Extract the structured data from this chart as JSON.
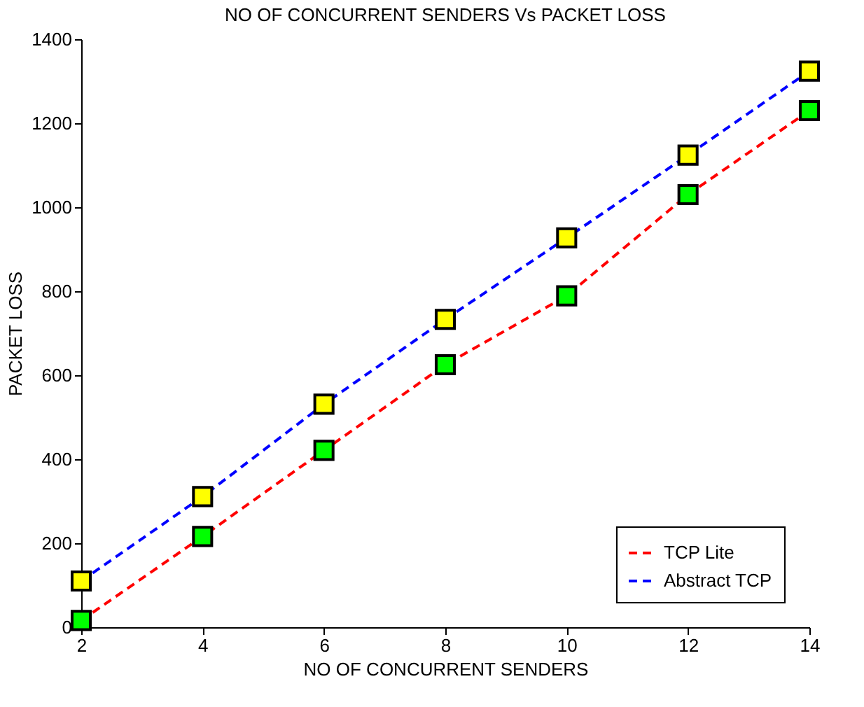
{
  "chart_data": {
    "type": "line",
    "title": "NO OF CONCURRENT SENDERS Vs PACKET LOSS",
    "xlabel": "NO OF CONCURRENT SENDERS",
    "ylabel": "PACKET LOSS",
    "x": [
      2,
      4,
      6,
      8,
      10,
      12,
      14
    ],
    "series": [
      {
        "name": "TCP Lite",
        "color": "#ff0000",
        "values": [
          16,
          216,
          421,
          625,
          789,
          1030,
          1230
        ]
      },
      {
        "name": "Abstract TCP",
        "color": "#0000ff",
        "values": [
          110,
          311,
          531,
          733,
          927,
          1124,
          1324
        ]
      }
    ],
    "xlim": [
      2,
      14
    ],
    "xticks": [
      2,
      4,
      6,
      8,
      10,
      12,
      14
    ],
    "ylim": [
      0,
      1400
    ],
    "yticks": [
      0,
      200,
      400,
      600,
      800,
      1000,
      1200,
      1400
    ],
    "grid": false,
    "legend": "bottom right",
    "marker": "square",
    "line_style": "dashed"
  }
}
